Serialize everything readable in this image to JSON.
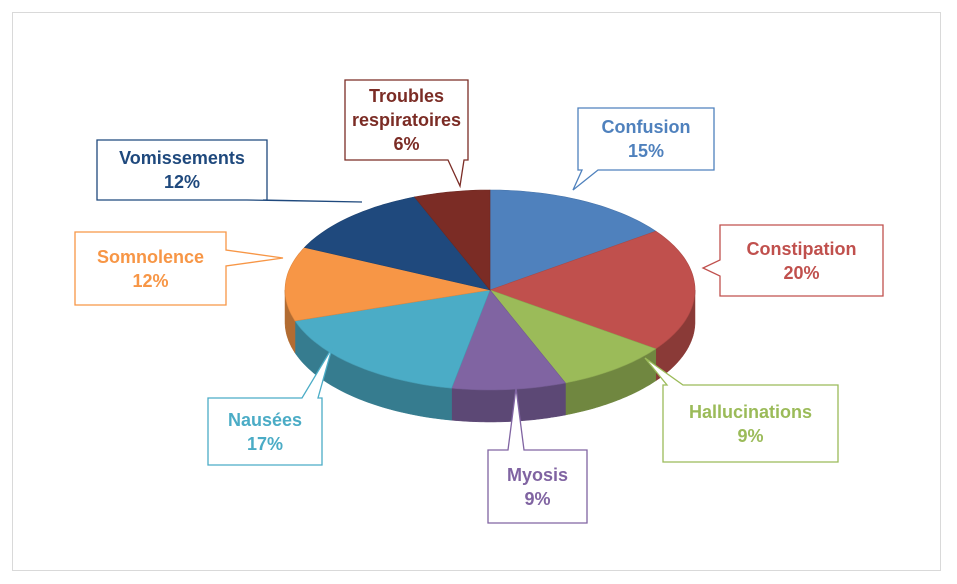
{
  "chart_data": {
    "type": "pie",
    "categories": [
      "Confusion",
      "Constipation",
      "Hallucinations",
      "Myosis",
      "Nausées",
      "Somnolence",
      "Vomissements",
      "Troubles respiratoires"
    ],
    "values": [
      15,
      20,
      9,
      9,
      17,
      12,
      12,
      6
    ],
    "value_labels": [
      "15%",
      "20%",
      "9%",
      "9%",
      "17%",
      "12%",
      "12%",
      "6%"
    ],
    "colors": [
      "#4f81bd",
      "#c0504d",
      "#9bbb59",
      "#8064a2",
      "#4bacc6",
      "#f79646",
      "#1f497d",
      "#7b2c25"
    ],
    "three_d": true
  }
}
